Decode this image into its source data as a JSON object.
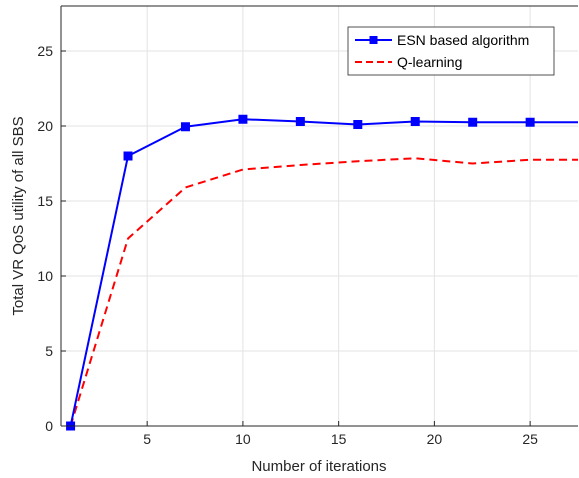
{
  "chart_data": {
    "type": "line",
    "title": "",
    "xlabel": "Number of iterations",
    "ylabel": "Total VR QoS utility of all SBS",
    "xlim": [
      0.5,
      27.5
    ],
    "ylim": [
      0,
      28
    ],
    "xticks": [
      5,
      10,
      15,
      20,
      25
    ],
    "yticks": [
      0,
      5,
      10,
      15,
      20,
      25
    ],
    "grid": true,
    "legend_position": "top-right",
    "series": [
      {
        "name": "ESN based algorithm",
        "color": "#0000ff",
        "line_style": "solid",
        "marker": "square",
        "x": [
          1,
          4,
          7,
          10,
          13,
          16,
          19,
          22,
          25,
          28
        ],
        "y": [
          0,
          18.0,
          19.95,
          20.45,
          20.3,
          20.1,
          20.3,
          20.25,
          20.25,
          20.25
        ]
      },
      {
        "name": "Q-learning",
        "color": "#ff0000",
        "line_style": "dashed",
        "marker": "none",
        "x": [
          1,
          4,
          7,
          10,
          13,
          16,
          19,
          22,
          25,
          28
        ],
        "y": [
          0,
          12.5,
          15.9,
          17.1,
          17.4,
          17.65,
          17.85,
          17.5,
          17.75,
          17.75
        ]
      }
    ]
  }
}
